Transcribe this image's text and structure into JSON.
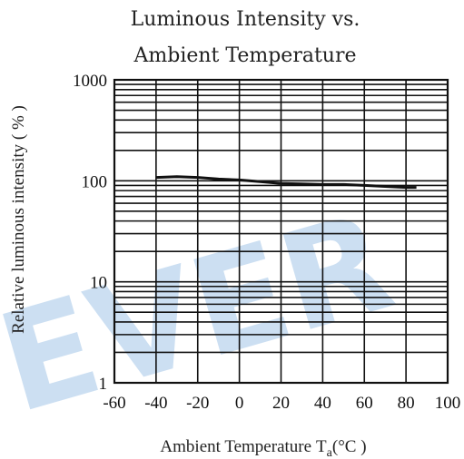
{
  "chart_data": {
    "type": "line",
    "title_lines": [
      "Luminous Intensity vs.",
      "Ambient Temperature"
    ],
    "xlabel": "Ambient Temperature",
    "xlabel_symbol": "T",
    "xlabel_subscript": "a",
    "xlabel_unit": "(°C )",
    "ylabel": "Relative luminous intensity ( % )",
    "x_scale": "linear",
    "y_scale": "log",
    "xlim": [
      -60,
      100
    ],
    "ylim": [
      1,
      1000
    ],
    "x_ticks": [
      -60,
      -40,
      -20,
      0,
      20,
      40,
      60,
      80,
      100
    ],
    "x_tick_labels": [
      "-60",
      "-40",
      "-20",
      "0",
      "20",
      "40",
      "60",
      "80",
      "100"
    ],
    "y_ticks": [
      1,
      10,
      100,
      1000
    ],
    "y_tick_labels": [
      "1",
      "10",
      "100",
      "1000"
    ],
    "grid": true,
    "series": [
      {
        "x": [
          -40,
          -30,
          -20,
          -10,
          0,
          10,
          20,
          30,
          40,
          50,
          60,
          70,
          80,
          85
        ],
        "y": [
          108,
          110,
          108,
          104,
          102,
          98,
          94,
          93,
          92,
          92,
          90,
          88,
          86,
          86
        ]
      }
    ],
    "watermark": "EVER",
    "watermark_color": "#bcd5ee"
  }
}
